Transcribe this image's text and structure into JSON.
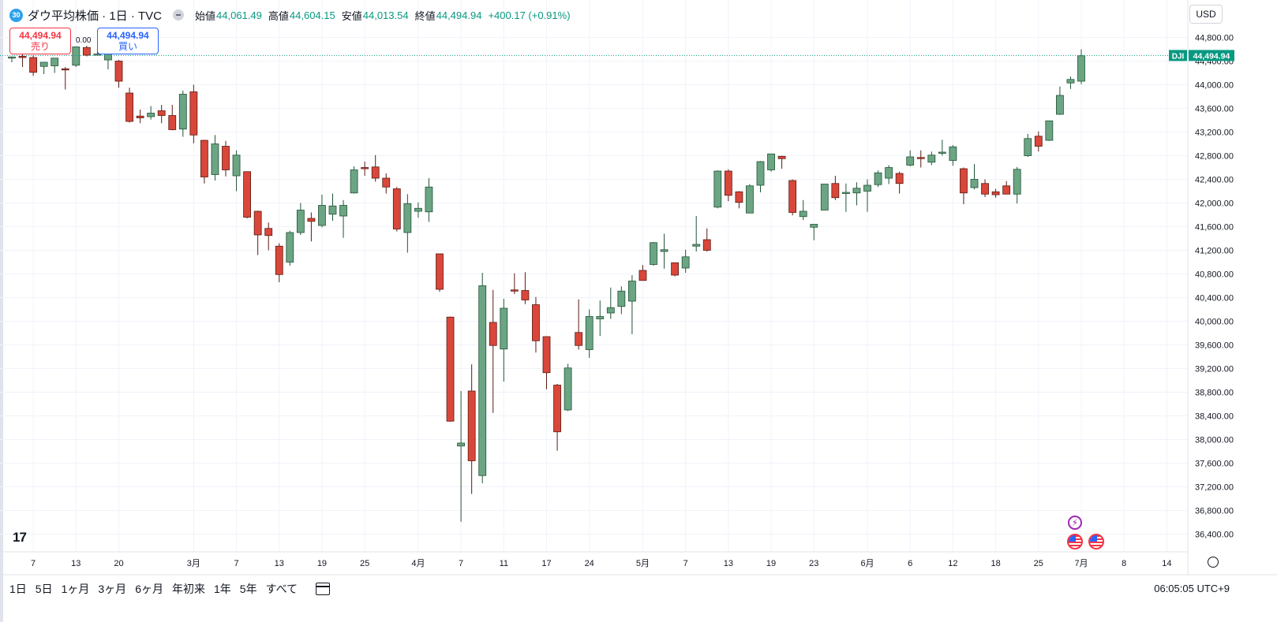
{
  "symbol": {
    "badge": "30",
    "title": "ダウ平均株価 · 1日 · TVC",
    "open_label": "始値",
    "open": "44,061.49",
    "high_label": "高値",
    "high": "44,604.15",
    "low_label": "安値",
    "low": "44,013.54",
    "close_label": "終値",
    "close": "44,494.94",
    "change": "+400.17 (+0.91%)"
  },
  "trade": {
    "sell_price": "44,494.94",
    "sell_label": "売り",
    "buy_price": "44,494.94",
    "buy_label": "買い",
    "spread": "0.00"
  },
  "price_scale": {
    "currency": "USD",
    "last_label": "DJI",
    "last_price": "44,494.94"
  },
  "bottom_toolbar": {
    "periods": [
      "1日",
      "5日",
      "1ヶ月",
      "3ヶ月",
      "6ヶ月",
      "年初来",
      "1年",
      "5年",
      "すべて"
    ],
    "clock": "06:05:05 UTC+9"
  },
  "colors": {
    "up": "#6ba583",
    "down": "#d9473a",
    "up_border": "#225437",
    "down_border": "#5b1a13",
    "last_line": "#089981",
    "grid": "#f0f3fa"
  },
  "chart_data": {
    "type": "candlestick",
    "ylim": [
      36200,
      45000
    ],
    "y_ticks": [
      36400,
      36800,
      37200,
      37600,
      38000,
      38400,
      38800,
      39200,
      39600,
      40000,
      40400,
      40800,
      41200,
      41600,
      42000,
      42400,
      42800,
      43200,
      43600,
      44000,
      44400,
      44800
    ],
    "y_tick_labels": [
      "36,400.00",
      "36,800.00",
      "37,200.00",
      "37,600.00",
      "38,000.00",
      "38,400.00",
      "38,800.00",
      "39,200.00",
      "39,600.00",
      "40,000.00",
      "40,400.00",
      "40,800.00",
      "41,200.00",
      "41,600.00",
      "42,000.00",
      "42,400.00",
      "42,800.00",
      "43,200.00",
      "43,600.00",
      "44,000.00",
      "44,400.00",
      "44,800.00"
    ],
    "x_ticks": [
      {
        "bar": 2,
        "label": "7"
      },
      {
        "bar": 6,
        "label": "13"
      },
      {
        "bar": 10,
        "label": "20"
      },
      {
        "bar": 17,
        "label": "3月"
      },
      {
        "bar": 21,
        "label": "7"
      },
      {
        "bar": 25,
        "label": "13"
      },
      {
        "bar": 29,
        "label": "19"
      },
      {
        "bar": 33,
        "label": "25"
      },
      {
        "bar": 38,
        "label": "4月"
      },
      {
        "bar": 42,
        "label": "7"
      },
      {
        "bar": 46,
        "label": "11"
      },
      {
        "bar": 50,
        "label": "17"
      },
      {
        "bar": 54,
        "label": "24"
      },
      {
        "bar": 59,
        "label": "5月"
      },
      {
        "bar": 63,
        "label": "7"
      },
      {
        "bar": 67,
        "label": "13"
      },
      {
        "bar": 71,
        "label": "19"
      },
      {
        "bar": 75,
        "label": "23"
      },
      {
        "bar": 80,
        "label": "6月"
      },
      {
        "bar": 84,
        "label": "6"
      },
      {
        "bar": 88,
        "label": "12"
      },
      {
        "bar": 92,
        "label": "18"
      },
      {
        "bar": 96,
        "label": "25"
      },
      {
        "bar": 100,
        "label": "7月"
      },
      {
        "bar": 104,
        "label": "8"
      },
      {
        "bar": 108,
        "label": "14"
      }
    ],
    "last_price": 44494.94,
    "candles": [
      {
        "o": 44450,
        "h": 44480,
        "l": 44380,
        "c": 44470
      },
      {
        "o": 44480,
        "h": 44520,
        "l": 44300,
        "c": 44470
      },
      {
        "o": 44460,
        "h": 44500,
        "l": 44150,
        "c": 44210
      },
      {
        "o": 44310,
        "h": 44380,
        "l": 44180,
        "c": 44380
      },
      {
        "o": 44320,
        "h": 44450,
        "l": 44200,
        "c": 44450
      },
      {
        "o": 44270,
        "h": 44300,
        "l": 43920,
        "c": 44260
      },
      {
        "o": 44330,
        "h": 44650,
        "l": 44300,
        "c": 44640
      },
      {
        "o": 44630,
        "h": 44660,
        "l": 44480,
        "c": 44500
      },
      {
        "o": 44510,
        "h": 44560,
        "l": 44490,
        "c": 44520
      },
      {
        "o": 44420,
        "h": 44600,
        "l": 44260,
        "c": 44520
      },
      {
        "o": 44400,
        "h": 44420,
        "l": 43950,
        "c": 44060
      },
      {
        "o": 43860,
        "h": 43950,
        "l": 43360,
        "c": 43380
      },
      {
        "o": 43470,
        "h": 43580,
        "l": 43350,
        "c": 43440
      },
      {
        "o": 43460,
        "h": 43640,
        "l": 43410,
        "c": 43520
      },
      {
        "o": 43560,
        "h": 43660,
        "l": 43350,
        "c": 43480
      },
      {
        "o": 43480,
        "h": 43660,
        "l": 43230,
        "c": 43240
      },
      {
        "o": 43250,
        "h": 43900,
        "l": 43120,
        "c": 43840
      },
      {
        "o": 43880,
        "h": 44000,
        "l": 43010,
        "c": 43150
      },
      {
        "o": 43060,
        "h": 43070,
        "l": 42330,
        "c": 42440
      },
      {
        "o": 42480,
        "h": 43150,
        "l": 42380,
        "c": 43000
      },
      {
        "o": 42960,
        "h": 43050,
        "l": 42450,
        "c": 42560
      },
      {
        "o": 42460,
        "h": 42890,
        "l": 42200,
        "c": 42810
      },
      {
        "o": 42530,
        "h": 42530,
        "l": 41740,
        "c": 41760
      },
      {
        "o": 41860,
        "h": 41870,
        "l": 41120,
        "c": 41460
      },
      {
        "o": 41570,
        "h": 41670,
        "l": 41200,
        "c": 41450
      },
      {
        "o": 41270,
        "h": 41320,
        "l": 40660,
        "c": 40790
      },
      {
        "o": 41000,
        "h": 41530,
        "l": 40940,
        "c": 41500
      },
      {
        "o": 41500,
        "h": 42000,
        "l": 41460,
        "c": 41880
      },
      {
        "o": 41740,
        "h": 41840,
        "l": 41350,
        "c": 41690
      },
      {
        "o": 41620,
        "h": 42140,
        "l": 41590,
        "c": 41960
      },
      {
        "o": 41810,
        "h": 42160,
        "l": 41700,
        "c": 41950
      },
      {
        "o": 41780,
        "h": 42050,
        "l": 41410,
        "c": 41960
      },
      {
        "o": 42170,
        "h": 42620,
        "l": 42160,
        "c": 42560
      },
      {
        "o": 42600,
        "h": 42700,
        "l": 42460,
        "c": 42590
      },
      {
        "o": 42610,
        "h": 42810,
        "l": 42360,
        "c": 42420
      },
      {
        "o": 42420,
        "h": 42500,
        "l": 42160,
        "c": 42270
      },
      {
        "o": 42240,
        "h": 42270,
        "l": 41520,
        "c": 41560
      },
      {
        "o": 41500,
        "h": 42150,
        "l": 41160,
        "c": 41990
      },
      {
        "o": 41860,
        "h": 42010,
        "l": 41750,
        "c": 41910
      },
      {
        "o": 41850,
        "h": 42420,
        "l": 41680,
        "c": 42270
      },
      {
        "o": 41140,
        "h": 41140,
        "l": 40500,
        "c": 40540
      },
      {
        "o": 40070,
        "h": 40080,
        "l": 38300,
        "c": 38310
      },
      {
        "o": 37890,
        "h": 38820,
        "l": 36610,
        "c": 37940
      },
      {
        "o": 38820,
        "h": 39270,
        "l": 37080,
        "c": 37640
      },
      {
        "o": 37390,
        "h": 40820,
        "l": 37260,
        "c": 40600
      },
      {
        "o": 39980,
        "h": 40530,
        "l": 38450,
        "c": 39590
      },
      {
        "o": 39530,
        "h": 40380,
        "l": 38980,
        "c": 40220
      },
      {
        "o": 40530,
        "h": 40810,
        "l": 40460,
        "c": 40510
      },
      {
        "o": 40520,
        "h": 40830,
        "l": 40290,
        "c": 40360
      },
      {
        "o": 40280,
        "h": 40410,
        "l": 39470,
        "c": 39670
      },
      {
        "o": 39740,
        "h": 39740,
        "l": 38850,
        "c": 39130
      },
      {
        "o": 38920,
        "h": 38940,
        "l": 37810,
        "c": 38130
      },
      {
        "o": 38500,
        "h": 39280,
        "l": 38480,
        "c": 39210
      },
      {
        "o": 39810,
        "h": 40370,
        "l": 39520,
        "c": 39590
      },
      {
        "o": 39520,
        "h": 40200,
        "l": 39380,
        "c": 40080
      },
      {
        "o": 40040,
        "h": 40350,
        "l": 39750,
        "c": 40080
      },
      {
        "o": 40140,
        "h": 40570,
        "l": 40040,
        "c": 40230
      },
      {
        "o": 40250,
        "h": 40590,
        "l": 40120,
        "c": 40510
      },
      {
        "o": 40340,
        "h": 40780,
        "l": 39780,
        "c": 40680
      },
      {
        "o": 40860,
        "h": 40950,
        "l": 40690,
        "c": 40690
      },
      {
        "o": 40960,
        "h": 41340,
        "l": 40940,
        "c": 41330
      },
      {
        "o": 41180,
        "h": 41480,
        "l": 40890,
        "c": 41210
      },
      {
        "o": 40990,
        "h": 40990,
        "l": 40760,
        "c": 40780
      },
      {
        "o": 40900,
        "h": 41210,
        "l": 40820,
        "c": 41090
      },
      {
        "o": 41270,
        "h": 41780,
        "l": 41180,
        "c": 41300
      },
      {
        "o": 41380,
        "h": 41570,
        "l": 41180,
        "c": 41200
      },
      {
        "o": 41930,
        "h": 42550,
        "l": 41910,
        "c": 42540
      },
      {
        "o": 42540,
        "h": 42570,
        "l": 42030,
        "c": 42130
      },
      {
        "o": 42190,
        "h": 42200,
        "l": 41910,
        "c": 42010
      },
      {
        "o": 41830,
        "h": 42320,
        "l": 41830,
        "c": 42290
      },
      {
        "o": 42300,
        "h": 42710,
        "l": 42180,
        "c": 42700
      },
      {
        "o": 42560,
        "h": 42830,
        "l": 42530,
        "c": 42830
      },
      {
        "o": 42790,
        "h": 42800,
        "l": 42580,
        "c": 42750
      },
      {
        "o": 42380,
        "h": 42400,
        "l": 41790,
        "c": 41840
      },
      {
        "o": 41770,
        "h": 42050,
        "l": 41710,
        "c": 41860
      },
      {
        "o": 41590,
        "h": 41640,
        "l": 41370,
        "c": 41640
      },
      {
        "o": 41880,
        "h": 42320,
        "l": 41880,
        "c": 42320
      },
      {
        "o": 42330,
        "h": 42460,
        "l": 42050,
        "c": 42090
      },
      {
        "o": 42160,
        "h": 42330,
        "l": 41850,
        "c": 42180
      },
      {
        "o": 42170,
        "h": 42350,
        "l": 41960,
        "c": 42250
      },
      {
        "o": 42200,
        "h": 42400,
        "l": 41850,
        "c": 42300
      },
      {
        "o": 42310,
        "h": 42550,
        "l": 42270,
        "c": 42510
      },
      {
        "o": 42420,
        "h": 42640,
        "l": 42320,
        "c": 42600
      },
      {
        "o": 42500,
        "h": 42530,
        "l": 42160,
        "c": 42330
      },
      {
        "o": 42640,
        "h": 42890,
        "l": 42620,
        "c": 42780
      },
      {
        "o": 42770,
        "h": 42890,
        "l": 42600,
        "c": 42750
      },
      {
        "o": 42690,
        "h": 42870,
        "l": 42640,
        "c": 42810
      },
      {
        "o": 42850,
        "h": 43070,
        "l": 42800,
        "c": 42860
      },
      {
        "o": 42720,
        "h": 42980,
        "l": 42630,
        "c": 42950
      },
      {
        "o": 42580,
        "h": 42600,
        "l": 41980,
        "c": 42170
      },
      {
        "o": 42260,
        "h": 42660,
        "l": 42230,
        "c": 42400
      },
      {
        "o": 42330,
        "h": 42400,
        "l": 42100,
        "c": 42150
      },
      {
        "o": 42190,
        "h": 42240,
        "l": 42090,
        "c": 42140
      },
      {
        "o": 42290,
        "h": 42370,
        "l": 42150,
        "c": 42150
      },
      {
        "o": 42150,
        "h": 42610,
        "l": 41990,
        "c": 42570
      },
      {
        "o": 42800,
        "h": 43170,
        "l": 42780,
        "c": 43090
      },
      {
        "o": 43130,
        "h": 43210,
        "l": 42870,
        "c": 42960
      },
      {
        "o": 43060,
        "h": 43380,
        "l": 43050,
        "c": 43390
      },
      {
        "o": 43500,
        "h": 43970,
        "l": 43490,
        "c": 43820
      },
      {
        "o": 44030,
        "h": 44140,
        "l": 43930,
        "c": 44090
      },
      {
        "o": 44060,
        "h": 44600,
        "l": 44010,
        "c": 44490
      }
    ]
  }
}
